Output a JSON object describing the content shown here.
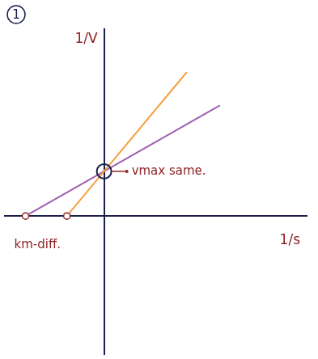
{
  "chart_data": {
    "type": "line",
    "title": "1",
    "x_label": "1/s",
    "y_label": "1/V",
    "xlim": [
      -12,
      24.5
    ],
    "ylim": [
      -17,
      23
    ],
    "tick_labels": false,
    "grid": false,
    "series": [
      {
        "color": "#f5a040",
        "marker": "circle",
        "x": [
          -4.5,
          0,
          10
        ],
        "values": [
          0,
          5.5,
          17.7
        ]
      },
      {
        "color": "#a05fb0",
        "marker": "circle",
        "x": [
          -9.5,
          0,
          14
        ],
        "values": [
          0,
          5.5,
          13.6
        ]
      }
    ],
    "annotations": [
      {
        "text": "vmax same.",
        "x": 0,
        "y": 5.5
      },
      {
        "text": "km-diff.",
        "x": -9.5,
        "y": 0
      }
    ]
  }
}
